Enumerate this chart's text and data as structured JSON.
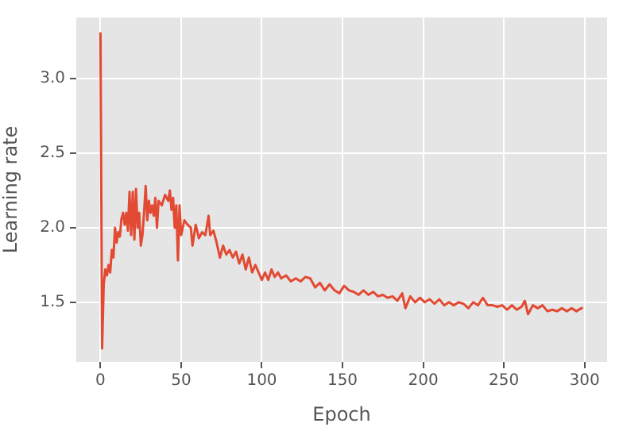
{
  "chart_data": {
    "type": "line",
    "xlabel": "Epoch",
    "ylabel": "Learning rate",
    "xlim": [
      -15,
      314
    ],
    "ylim": [
      1.1,
      3.41
    ],
    "xticks": [
      0,
      50,
      100,
      150,
      200,
      250,
      300
    ],
    "yticks": [
      {
        "value": 1.5,
        "label": "1.5"
      },
      {
        "value": 2,
        "label": "2.0"
      },
      {
        "value": 2.5,
        "label": "2.5"
      },
      {
        "value": 3,
        "label": "3.0"
      }
    ],
    "grid": true,
    "legend": false,
    "marker": "none",
    "line_style": "solid",
    "x": [
      0,
      1,
      2,
      3,
      4,
      5,
      6,
      7,
      8,
      9,
      10,
      11,
      12,
      13,
      14,
      15,
      16,
      17,
      18,
      19,
      20,
      21,
      22,
      23,
      24,
      25,
      26,
      27,
      28,
      29,
      30,
      31,
      32,
      33,
      34,
      35,
      36,
      38,
      40,
      42,
      43,
      44,
      45,
      46,
      47,
      48,
      49,
      50,
      52,
      54,
      56,
      57,
      59,
      61,
      63,
      65,
      67,
      68,
      70,
      72,
      74,
      76,
      78,
      80,
      82,
      84,
      86,
      88,
      90,
      92,
      94,
      96,
      98,
      100,
      102,
      104,
      106,
      108,
      110,
      112,
      115,
      118,
      121,
      124,
      127,
      130,
      133,
      136,
      139,
      142,
      145,
      148,
      151,
      154,
      157,
      160,
      163,
      166,
      169,
      172,
      175,
      178,
      181,
      184,
      187,
      189,
      192,
      195,
      198,
      201,
      204,
      207,
      210,
      213,
      216,
      219,
      222,
      225,
      228,
      231,
      234,
      237,
      240,
      243,
      246,
      249,
      252,
      255,
      258,
      261,
      263,
      265,
      268,
      271,
      274,
      277,
      280,
      283,
      286,
      289,
      292,
      295,
      298,
      299
    ],
    "series": [
      {
        "color": "#e24a33",
        "values": [
          3.31,
          1.19,
          1.62,
          1.72,
          1.68,
          1.75,
          1.7,
          1.85,
          1.8,
          2.0,
          1.9,
          1.97,
          1.94,
          2.06,
          2.1,
          2.02,
          2.1,
          1.98,
          2.24,
          1.95,
          2.24,
          1.92,
          2.26,
          2.0,
          2.1,
          1.88,
          1.95,
          2.1,
          2.28,
          2.05,
          2.18,
          2.1,
          2.15,
          2.08,
          2.2,
          2.0,
          2.18,
          2.15,
          2.22,
          2.18,
          2.25,
          2.12,
          2.2,
          2.0,
          2.15,
          1.78,
          2.15,
          1.95,
          2.05,
          2.02,
          2.0,
          1.88,
          2.02,
          1.93,
          1.97,
          1.95,
          2.08,
          1.95,
          1.98,
          1.9,
          1.8,
          1.88,
          1.82,
          1.85,
          1.8,
          1.84,
          1.76,
          1.82,
          1.72,
          1.8,
          1.7,
          1.75,
          1.7,
          1.65,
          1.7,
          1.65,
          1.72,
          1.67,
          1.7,
          1.66,
          1.68,
          1.64,
          1.66,
          1.64,
          1.67,
          1.66,
          1.6,
          1.63,
          1.58,
          1.62,
          1.58,
          1.56,
          1.61,
          1.58,
          1.57,
          1.55,
          1.58,
          1.55,
          1.57,
          1.54,
          1.55,
          1.53,
          1.54,
          1.51,
          1.56,
          1.46,
          1.54,
          1.5,
          1.53,
          1.5,
          1.52,
          1.49,
          1.52,
          1.48,
          1.5,
          1.48,
          1.5,
          1.49,
          1.46,
          1.5,
          1.48,
          1.53,
          1.48,
          1.48,
          1.47,
          1.48,
          1.45,
          1.48,
          1.45,
          1.47,
          1.51,
          1.42,
          1.48,
          1.46,
          1.48,
          1.44,
          1.45,
          1.44,
          1.46,
          1.44,
          1.46,
          1.44,
          1.46,
          1.46
        ]
      }
    ]
  }
}
